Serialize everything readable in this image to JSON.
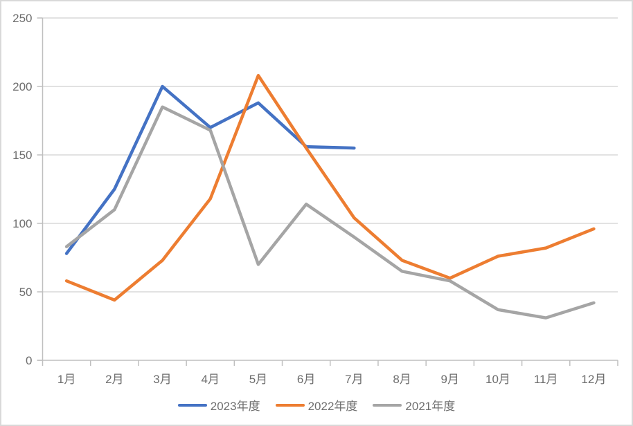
{
  "chart_data": {
    "type": "line",
    "categories": [
      "1月",
      "2月",
      "3月",
      "4月",
      "5月",
      "6月",
      "7月",
      "8月",
      "9月",
      "10月",
      "11月",
      "12月"
    ],
    "series": [
      {
        "name": "2023年度",
        "color": "#4472C4",
        "values": [
          78,
          125,
          200,
          170,
          188,
          156,
          155,
          null,
          null,
          null,
          null,
          null
        ]
      },
      {
        "name": "2022年度",
        "color": "#ED7D31",
        "values": [
          58,
          44,
          73,
          118,
          208,
          155,
          104,
          73,
          60,
          76,
          82,
          96
        ]
      },
      {
        "name": "2021年度",
        "color": "#A5A5A5",
        "values": [
          83,
          110,
          185,
          168,
          70,
          114,
          90,
          65,
          58,
          37,
          31,
          42
        ]
      }
    ],
    "title": "",
    "xlabel": "",
    "ylabel": "",
    "ylim": [
      0,
      250
    ],
    "y_ticks": [
      0,
      50,
      100,
      150,
      200,
      250
    ],
    "grid": true,
    "legend_position": "bottom",
    "style": {
      "gridline_color": "#D9D9D9",
      "axis_color": "#BFBFBF",
      "tick_label_color": "#6e6e6e",
      "background": "#FFFFFF",
      "border_color": "#D9D9D9"
    }
  }
}
